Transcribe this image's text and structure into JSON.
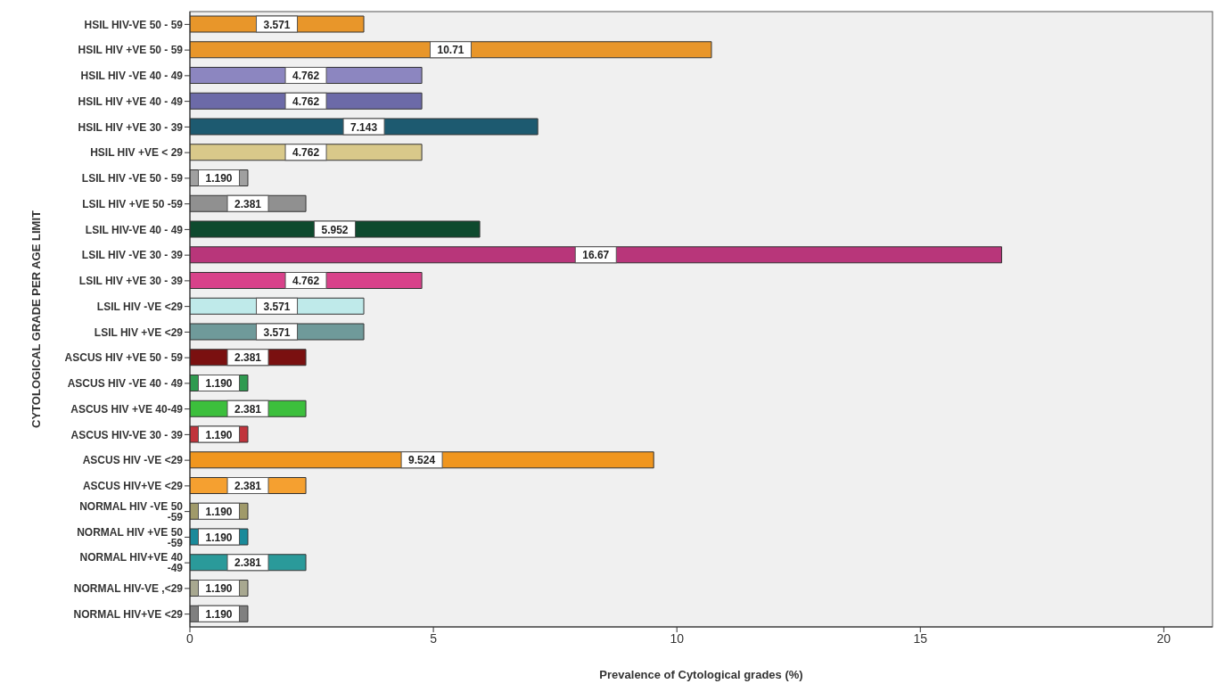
{
  "chart_data": {
    "type": "bar",
    "orientation": "horizontal",
    "xlabel": "Prevalence of Cytological grades (%)",
    "ylabel": "CYTOLOGICAL GRADE PER AGE LIMIT",
    "categories": [
      "HSIL HIV-VE 50 - 59",
      "HSIL HIV +VE 50 - 59",
      "HSIL HIV -VE 40 - 49",
      "HSIL HIV +VE 40 - 49",
      "HSIL HIV +VE 30 - 39",
      "HSIL HIV +VE < 29",
      "LSIL HIV -VE 50 - 59",
      "LSIL HIV +VE 50 -59",
      "LSIL HIV-VE 40 - 49",
      "LSIL HIV -VE 30 - 39",
      "LSIL HIV +VE 30 - 39",
      "LSIL HIV -VE <29",
      "LSIL HIV +VE <29",
      "ASCUS HIV +VE 50 - 59",
      "ASCUS HIV -VE 40 - 49",
      "ASCUS HIV +VE 40-49",
      "ASCUS HIV-VE 30 - 39",
      "ASCUS HIV -VE <29",
      "ASCUS HIV+VE <29",
      "NORMAL HIV -VE 50 -59",
      "NORMAL HIV +VE 50 -59",
      "NORMAL HIV+VE 40 -49",
      "NORMAL HIV-VE ,<29",
      "NORMAL HIV+VE <29"
    ],
    "values": [
      3.571,
      10.71,
      4.762,
      4.762,
      7.143,
      4.762,
      1.19,
      2.381,
      5.952,
      16.67,
      4.762,
      3.571,
      3.571,
      2.381,
      1.19,
      2.381,
      1.19,
      9.524,
      2.381,
      1.19,
      1.19,
      2.381,
      1.19,
      1.19
    ],
    "value_labels": [
      "3.571",
      "10.71",
      "4.762",
      "4.762",
      "7.143",
      "4.762",
      "1.190",
      "2.381",
      "5.952",
      "16.67",
      "4.762",
      "3.571",
      "3.571",
      "2.381",
      "1.190",
      "2.381",
      "1.190",
      "9.524",
      "2.381",
      "1.190",
      "1.190",
      "2.381",
      "1.190",
      "1.190"
    ],
    "colors": [
      "#e8962a",
      "#e8962a",
      "#8c86c0",
      "#6c6aa8",
      "#1d5a70",
      "#d9c98a",
      "#a0a0a0",
      "#909090",
      "#0e4a2e",
      "#b8367a",
      "#d8428a",
      "#bfeaea",
      "#6f9a9a",
      "#7a1010",
      "#2f9a50",
      "#3cbf3c",
      "#c0343c",
      "#f0961e",
      "#f5a030",
      "#a09a6a",
      "#1a8a9a",
      "#2a9a9a",
      "#a8a890",
      "#808080"
    ],
    "xlim": [
      0,
      21
    ],
    "xticks": [
      0,
      5,
      10,
      15,
      20
    ],
    "grid": false,
    "legend": false
  }
}
